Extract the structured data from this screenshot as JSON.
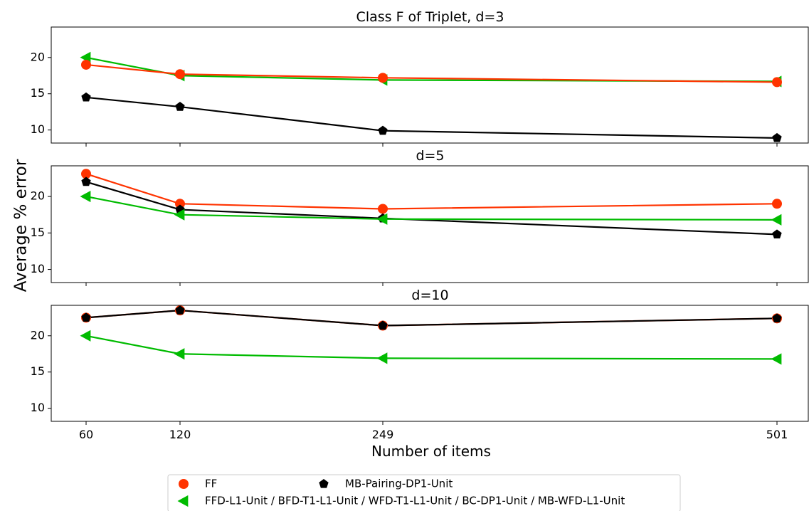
{
  "chart_data": {
    "type": "line",
    "xlabel": "Number of items",
    "ylabel": "Average % error",
    "x": [
      60,
      120,
      249,
      501
    ],
    "x_tick_labels": [
      "60",
      "120",
      "249",
      "501"
    ],
    "y_tick_labels": [
      "10",
      "15",
      "20"
    ],
    "grid": false,
    "legend_position": "bottom",
    "colors": {
      "FF": "#ff3300",
      "MB": "#000000",
      "GREEN": "#00bb00"
    },
    "legend": [
      {
        "label": "FF",
        "marker": "circle",
        "color": "#ff3300"
      },
      {
        "label": "MB-Pairing-DP1-Unit",
        "marker": "pentagon",
        "color": "#000000"
      },
      {
        "label": "FFD-L1-Unit / BFD-T1-L1-Unit / WFD-T1-L1-Unit / BC-DP1-Unit / MB-WFD-L1-Unit",
        "marker": "triangle-left",
        "color": "#00bb00"
      }
    ],
    "panels": [
      {
        "title": "Class F of Triplet, d=3",
        "ylim": [
          8.2,
          24.2
        ],
        "series": [
          {
            "key": "GREEN",
            "values": [
              20.0,
              17.5,
              16.9,
              16.7
            ]
          },
          {
            "key": "FF",
            "values": [
              19.0,
              17.7,
              17.2,
              16.6
            ]
          },
          {
            "key": "MB",
            "values": [
              14.5,
              13.2,
              9.9,
              8.9
            ]
          }
        ]
      },
      {
        "title": "d=5",
        "ylim": [
          8.2,
          24.2
        ],
        "series": [
          {
            "key": "FF",
            "values": [
              23.1,
              19.0,
              18.3,
              19.0
            ]
          },
          {
            "key": "MB",
            "values": [
              22.0,
              18.2,
              17.0,
              14.8
            ]
          },
          {
            "key": "GREEN",
            "values": [
              20.0,
              17.5,
              16.9,
              16.8
            ]
          }
        ]
      },
      {
        "title": "d=10",
        "ylim": [
          8.2,
          24.2
        ],
        "series": [
          {
            "key": "GREEN",
            "values": [
              20.0,
              17.5,
              16.9,
              16.8
            ]
          },
          {
            "key": "FF",
            "values": [
              22.5,
              23.5,
              21.4,
              22.4
            ]
          },
          {
            "key": "MB",
            "values": [
              22.5,
              23.5,
              21.4,
              22.4
            ]
          }
        ]
      }
    ]
  }
}
